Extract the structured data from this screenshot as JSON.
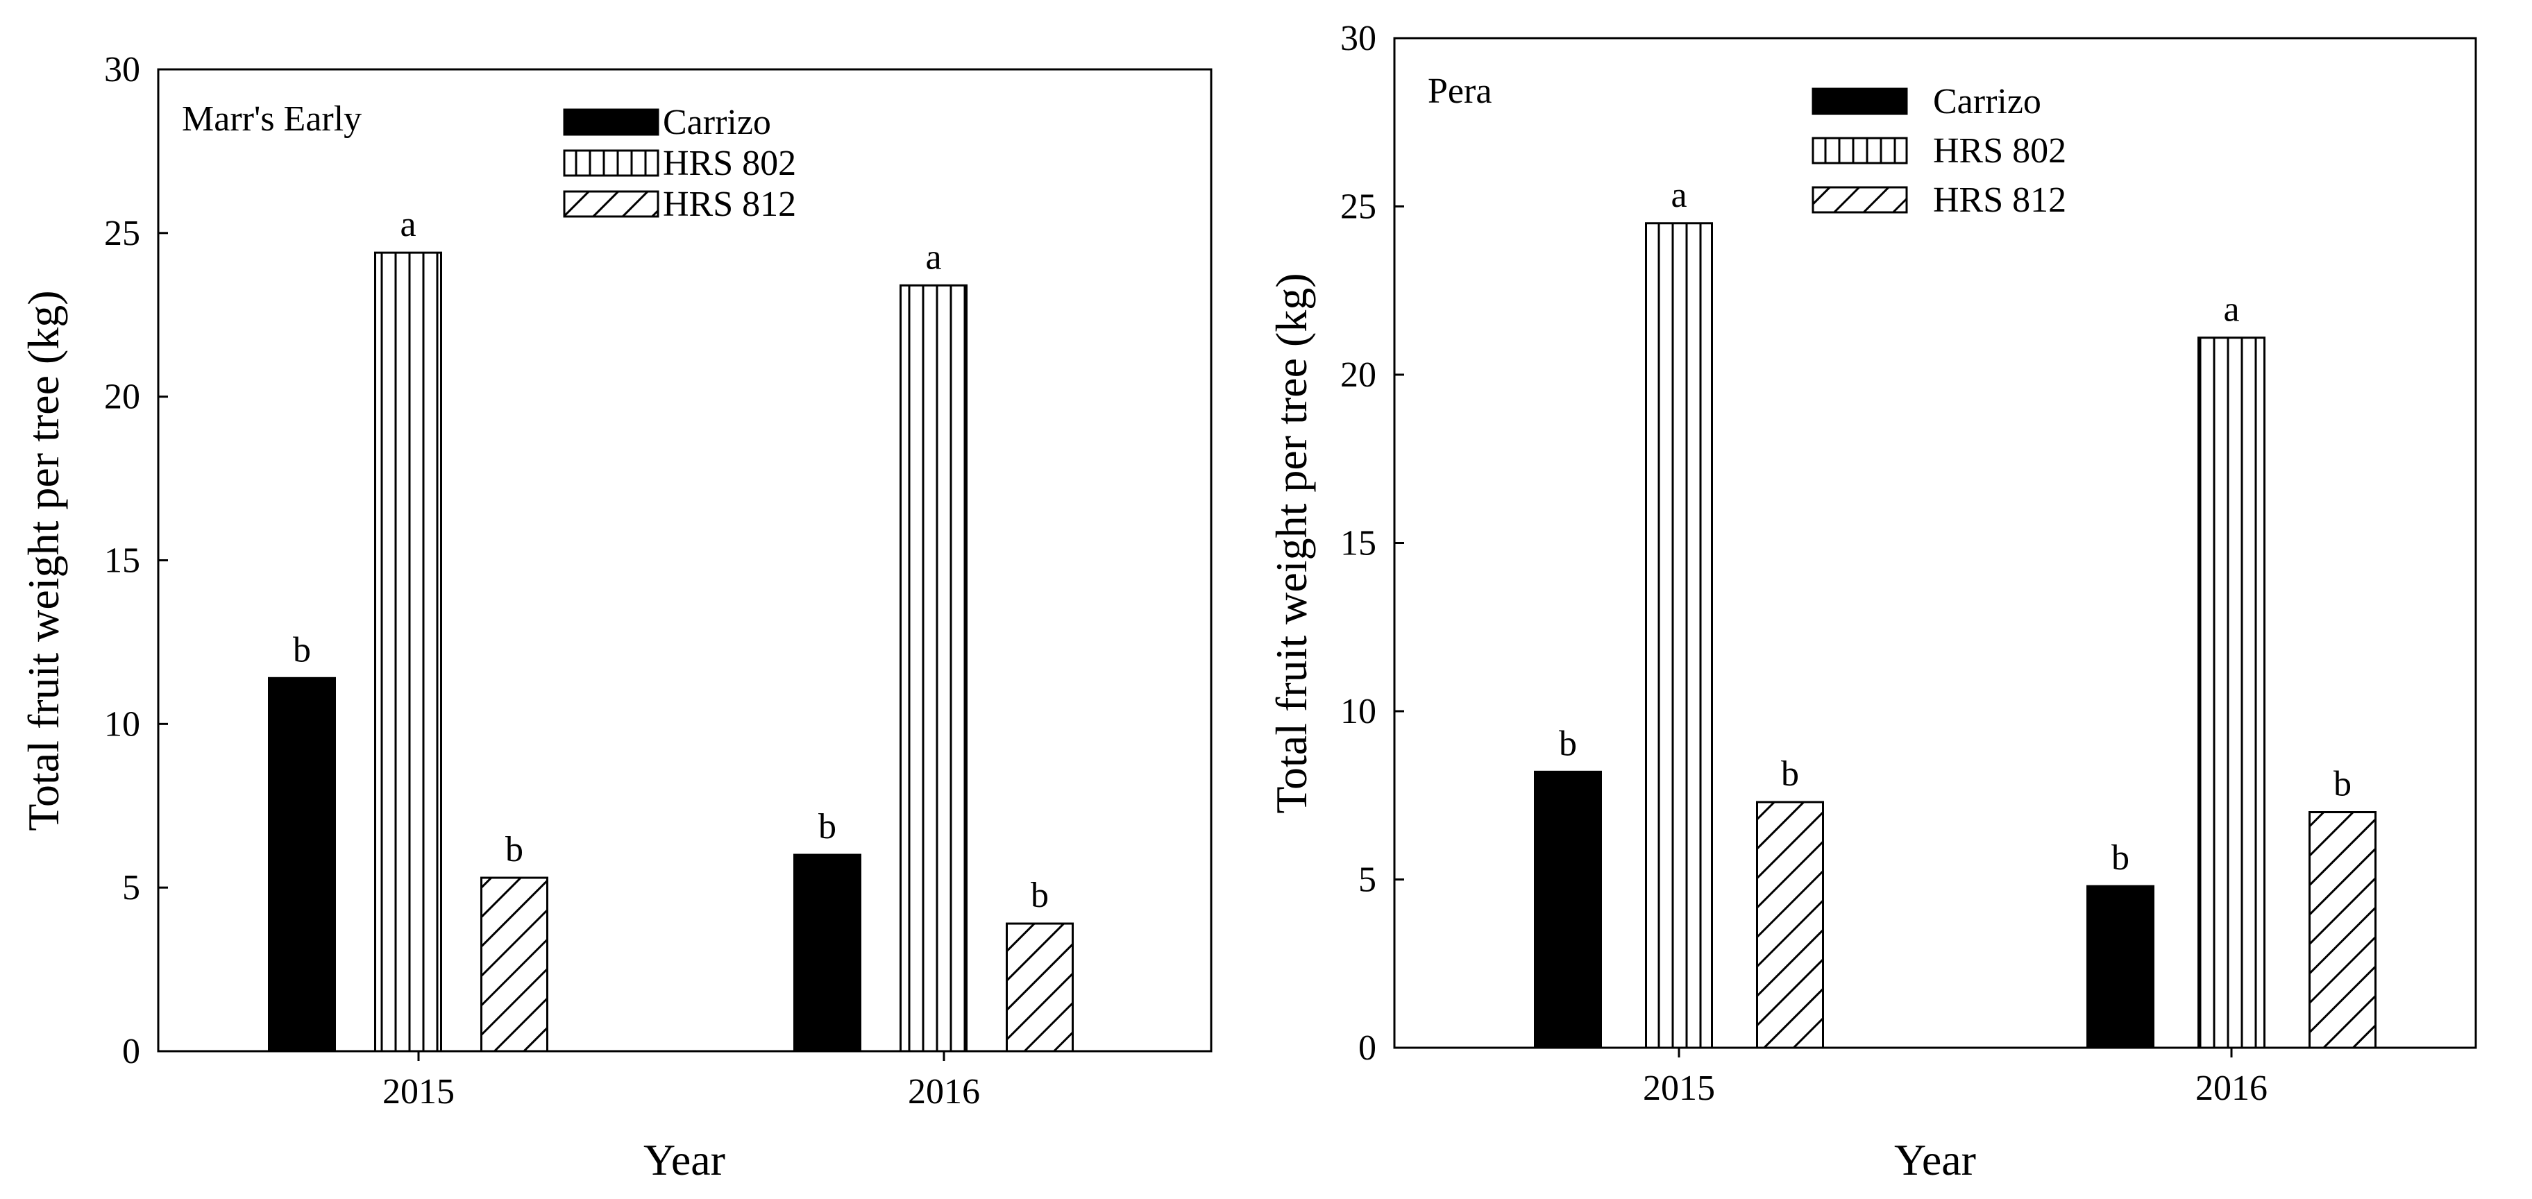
{
  "chart_data": [
    {
      "type": "bar",
      "title": "Marr's Early",
      "xlabel": "Year",
      "ylabel": "Total fruit weight per tree (kg)",
      "ylim": [
        0,
        30
      ],
      "yticks": [
        "0",
        "5",
        "10",
        "15",
        "20",
        "25",
        "30"
      ],
      "categories": [
        "2015",
        "2016"
      ],
      "legend_position": "top-center",
      "series": [
        {
          "name": "Carrizo",
          "pattern": "solid",
          "values": [
            11.4,
            6.0
          ],
          "letters": [
            "b",
            "b"
          ]
        },
        {
          "name": "HRS 802",
          "pattern": "vertical",
          "values": [
            24.4,
            23.4
          ],
          "letters": [
            "a",
            "a"
          ]
        },
        {
          "name": "HRS 812",
          "pattern": "diagonal",
          "values": [
            5.3,
            3.9
          ],
          "letters": [
            "b",
            "b"
          ]
        }
      ]
    },
    {
      "type": "bar",
      "title": "Pera",
      "xlabel": "Year",
      "ylabel": "Total fruit weight per tree (kg)",
      "ylim": [
        0,
        30
      ],
      "yticks": [
        "0",
        "5",
        "10",
        "15",
        "20",
        "25",
        "30"
      ],
      "categories": [
        "2015",
        "2016"
      ],
      "legend_position": "top-center",
      "series": [
        {
          "name": "Carrizo",
          "pattern": "solid",
          "values": [
            8.2,
            4.8
          ],
          "letters": [
            "b",
            "b"
          ]
        },
        {
          "name": "HRS 802",
          "pattern": "vertical",
          "values": [
            24.5,
            21.1
          ],
          "letters": [
            "a",
            "a"
          ]
        },
        {
          "name": "HRS 812",
          "pattern": "diagonal",
          "values": [
            7.3,
            7.0
          ],
          "letters": [
            "b",
            "b"
          ]
        }
      ]
    }
  ]
}
